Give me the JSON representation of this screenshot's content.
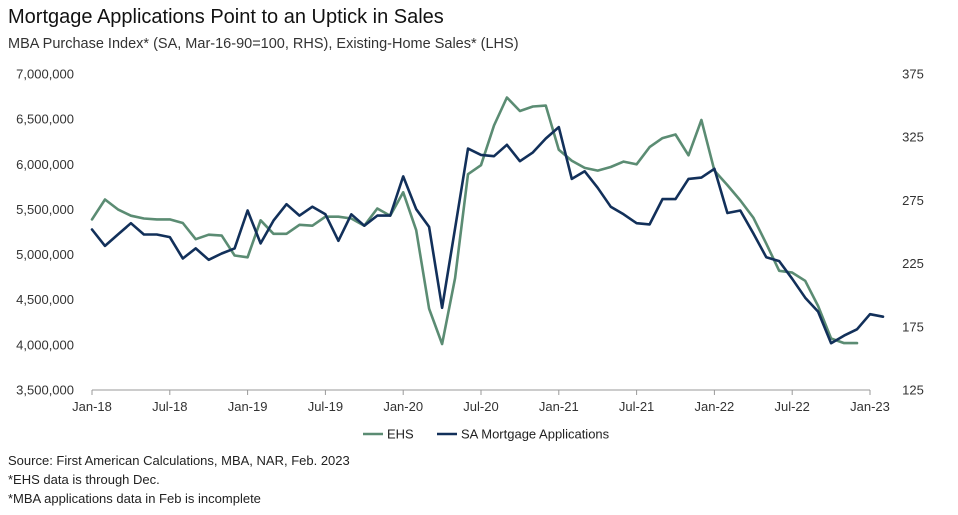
{
  "title": "Mortgage Applications Point to an Uptick in Sales",
  "subtitle": "MBA Purchase Index* (SA, Mar-16-90=100, RHS), Existing-Home Sales* (LHS)",
  "notes": [
    "Source: First American Calculations, MBA, NAR, Feb. 2023",
    "*EHS data is through Dec.",
    "*MBA applications data in Feb is incomplete"
  ],
  "colors": {
    "ehs": "#5b8c73",
    "mba": "#12305a",
    "axis": "#999999"
  },
  "chart_data": {
    "type": "line",
    "legend_position": "bottom",
    "grid": false,
    "x_ticks": [
      "Jan-18",
      "Jul-18",
      "Jan-19",
      "Jul-19",
      "Jan-20",
      "Jul-20",
      "Jan-21",
      "Jul-21",
      "Jan-22",
      "Jul-22",
      "Jan-23"
    ],
    "y_left": {
      "ylim": [
        3500000,
        7000000
      ],
      "ticks": [
        "3,500,000",
        "4,000,000",
        "4,500,000",
        "5,000,000",
        "5,500,000",
        "6,000,000",
        "6,500,000",
        "7,000,000"
      ],
      "tick_values": [
        3500000,
        4000000,
        4500000,
        5000000,
        5500000,
        6000000,
        6500000,
        7000000
      ]
    },
    "y_right": {
      "ylim": [
        125,
        375
      ],
      "ticks": [
        "125",
        "175",
        "225",
        "275",
        "325",
        "375"
      ],
      "tick_values": [
        125,
        175,
        225,
        275,
        325,
        375
      ]
    },
    "series": [
      {
        "name": "EHS",
        "axis": "left",
        "x": [
          "2018-01",
          "2018-02",
          "2018-03",
          "2018-04",
          "2018-05",
          "2018-06",
          "2018-07",
          "2018-08",
          "2018-09",
          "2018-10",
          "2018-11",
          "2018-12",
          "2019-01",
          "2019-02",
          "2019-03",
          "2019-04",
          "2019-05",
          "2019-06",
          "2019-07",
          "2019-08",
          "2019-09",
          "2019-10",
          "2019-11",
          "2019-12",
          "2020-01",
          "2020-02",
          "2020-03",
          "2020-04",
          "2020-05",
          "2020-06",
          "2020-07",
          "2020-08",
          "2020-09",
          "2020-10",
          "2020-11",
          "2020-12",
          "2021-01",
          "2021-02",
          "2021-03",
          "2021-04",
          "2021-05",
          "2021-06",
          "2021-07",
          "2021-08",
          "2021-09",
          "2021-10",
          "2021-11",
          "2021-12",
          "2022-01",
          "2022-02",
          "2022-03",
          "2022-04",
          "2022-05",
          "2022-06",
          "2022-07",
          "2022-08",
          "2022-09",
          "2022-10",
          "2022-11",
          "2022-12"
        ],
        "values": [
          5390000,
          5610000,
          5500000,
          5430000,
          5400000,
          5390000,
          5390000,
          5350000,
          5170000,
          5220000,
          5210000,
          4990000,
          4970000,
          5380000,
          5230000,
          5230000,
          5330000,
          5320000,
          5420000,
          5420000,
          5400000,
          5320000,
          5510000,
          5430000,
          5690000,
          5270000,
          4400000,
          4010000,
          4740000,
          5890000,
          5990000,
          6430000,
          6740000,
          6590000,
          6640000,
          6650000,
          6160000,
          6040000,
          5960000,
          5930000,
          5970000,
          6030000,
          6000000,
          6190000,
          6290000,
          6330000,
          6100000,
          6490000,
          5930000,
          5770000,
          5600000,
          5410000,
          5120000,
          4820000,
          4800000,
          4710000,
          4430000,
          4070000,
          4020000,
          4020000
        ]
      },
      {
        "name": "SA Mortgage Applications",
        "axis": "right",
        "x": [
          "2018-01",
          "2018-02",
          "2018-03",
          "2018-04",
          "2018-05",
          "2018-06",
          "2018-07",
          "2018-08",
          "2018-09",
          "2018-10",
          "2018-11",
          "2018-12",
          "2019-01",
          "2019-02",
          "2019-03",
          "2019-04",
          "2019-05",
          "2019-06",
          "2019-07",
          "2019-08",
          "2019-09",
          "2019-10",
          "2019-11",
          "2019-12",
          "2020-01",
          "2020-02",
          "2020-03",
          "2020-04",
          "2020-05",
          "2020-06",
          "2020-07",
          "2020-08",
          "2020-09",
          "2020-10",
          "2020-11",
          "2020-12",
          "2021-01",
          "2021-02",
          "2021-03",
          "2021-04",
          "2021-05",
          "2021-06",
          "2021-07",
          "2021-08",
          "2021-09",
          "2021-10",
          "2021-11",
          "2021-12",
          "2022-01",
          "2022-02",
          "2022-03",
          "2022-04",
          "2022-05",
          "2022-06",
          "2022-07",
          "2022-08",
          "2022-09",
          "2022-10",
          "2022-11",
          "2022-12",
          "2023-01",
          "2023-02"
        ],
        "values": [
          252,
          239,
          248,
          257,
          248,
          248,
          246,
          229,
          237,
          228,
          233,
          237,
          267,
          241,
          259,
          272,
          263,
          270,
          264,
          243,
          264,
          255,
          263,
          263,
          294,
          268,
          254,
          190,
          253,
          316,
          311,
          310,
          319,
          306,
          313,
          324,
          333,
          292,
          298,
          285,
          270,
          264,
          257,
          256,
          276,
          276,
          292,
          293,
          300,
          265,
          267,
          249,
          230,
          227,
          213,
          198,
          187,
          162,
          168,
          173,
          185,
          183
        ]
      }
    ]
  }
}
